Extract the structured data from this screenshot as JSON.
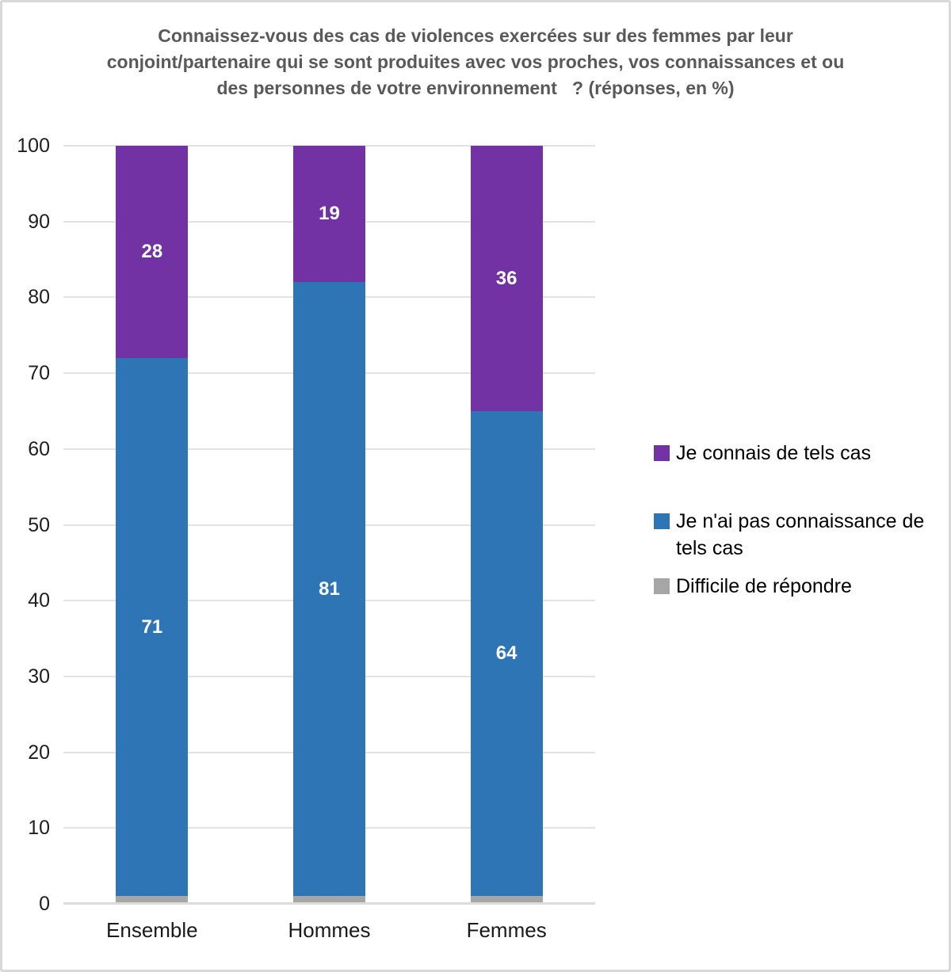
{
  "frame": {
    "border_color": "#D9D9D9",
    "background": "#ffffff"
  },
  "chart_data": {
    "type": "bar",
    "stacked": true,
    "title": "Connaissez-vous des cas de violences exercées sur des femmes par leur conjoint/partenaire qui se sont produites avec vos proches, vos connaissances et ou des personnes de votre environnement   ? (réponses, en %)",
    "title_color": "#595959",
    "categories": [
      "Ensemble",
      "Hommes",
      "Femmes"
    ],
    "series": [
      {
        "name": "Difficile de répondre",
        "color": "#A6A6A6",
        "values": [
          1,
          1,
          1
        ],
        "show_labels": false
      },
      {
        "name": "Je n'ai pas connaissance de tels cas",
        "color": "#2E75B6",
        "values": [
          71,
          81,
          64
        ],
        "show_labels": true
      },
      {
        "name": "Je connais de tels cas",
        "color": "#7232A3",
        "values": [
          28,
          19,
          36
        ],
        "show_labels": true
      }
    ],
    "ylim": [
      0,
      100
    ],
    "yticks": [
      0,
      10,
      20,
      30,
      40,
      50,
      60,
      70,
      80,
      90,
      100
    ],
    "grid": true,
    "gridline_color": "#E2E2E2",
    "axis_line_color": "#DCDCDC",
    "data_label_color": "#ffffff",
    "legend_position": "right"
  },
  "legend": {
    "items": [
      {
        "label": "Je connais de tels cas",
        "color": "#7232A3"
      },
      {
        "label": "Je n'ai pas connaissance de tels cas",
        "color": "#2E75B6"
      },
      {
        "label": "Difficile de répondre",
        "color": "#A6A6A6"
      }
    ]
  }
}
